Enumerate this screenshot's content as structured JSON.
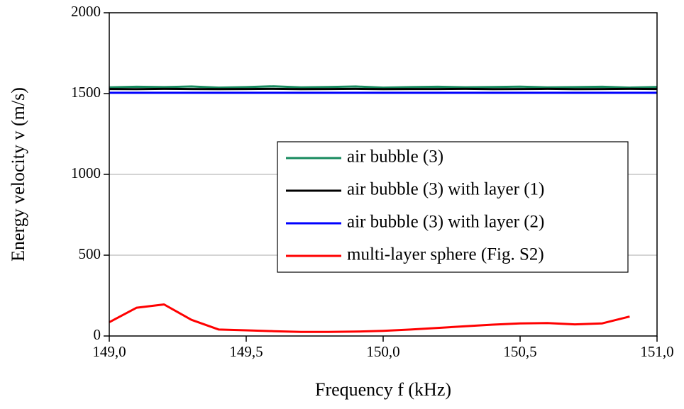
{
  "chart_data": {
    "type": "line",
    "x_label": "Frequency f (kHz)",
    "y_label": "Energy velocity v (m/s)",
    "x": [
      149.0,
      149.1,
      149.2,
      149.3,
      149.4,
      149.5,
      149.6,
      149.7,
      149.8,
      149.9,
      150.0,
      150.1,
      150.2,
      150.3,
      150.4,
      150.5,
      150.6,
      150.7,
      150.8,
      150.9,
      151.0
    ],
    "series": [
      {
        "name": "air bubble (3)",
        "color": "#178a5e",
        "values": [
          1538,
          1542,
          1540,
          1544,
          1537,
          1540,
          1545,
          1538,
          1541,
          1544,
          1537,
          1540,
          1542,
          1539,
          1541,
          1543,
          1538,
          1540,
          1542,
          1537,
          1541
        ]
      },
      {
        "name": "air bubble (3) with layer (1)",
        "color": "#000000",
        "values": [
          1528,
          1527,
          1529,
          1528,
          1527,
          1528,
          1529,
          1527,
          1528,
          1529,
          1527,
          1528,
          1528,
          1529,
          1527,
          1528,
          1529,
          1527,
          1528,
          1529,
          1528
        ]
      },
      {
        "name": "air bubble (3) with layer (2)",
        "color": "#0000ff",
        "values": [
          1505,
          1505,
          1505,
          1505,
          1505,
          1505,
          1505,
          1505,
          1505,
          1505,
          1505,
          1505,
          1505,
          1505,
          1505,
          1505,
          1505,
          1505,
          1505,
          1505,
          1505
        ]
      },
      {
        "name": "multi-layer sphere (Fig. S2)",
        "color": "#ff0000",
        "values": [
          85,
          175,
          195,
          100,
          40,
          35,
          30,
          25,
          25,
          27,
          32,
          40,
          50,
          60,
          70,
          78,
          80,
          72,
          78,
          120,
          null
        ]
      }
    ],
    "xlim": [
      149.0,
      151.0
    ],
    "ylim": [
      0,
      2000
    ],
    "xticks": [
      {
        "value": 149.0,
        "label": "149,0"
      },
      {
        "value": 149.5,
        "label": "149,5"
      },
      {
        "value": 150.0,
        "label": "150,0"
      },
      {
        "value": 150.5,
        "label": "150,5"
      },
      {
        "value": 151.0,
        "label": "151,0"
      }
    ],
    "yticks": [
      0,
      500,
      1000,
      1500,
      2000
    ],
    "grid": true,
    "legend_position": "right"
  }
}
